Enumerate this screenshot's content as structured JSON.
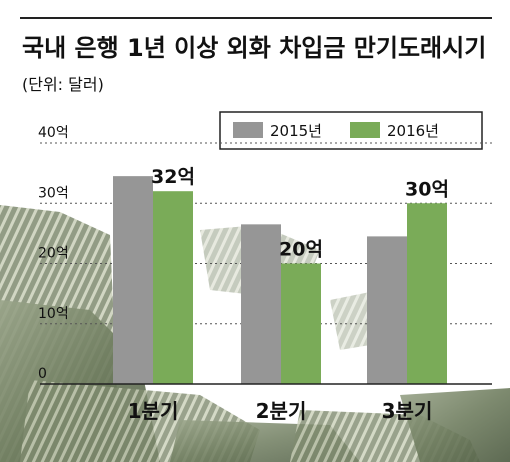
{
  "chart_data": {
    "type": "bar",
    "title": "국내 은행 1년 이상 외화 차입금 만기도래시기",
    "subtitle": "(단위: 달러)",
    "categories": [
      "1분기",
      "2분기",
      "3분기"
    ],
    "series": [
      {
        "name": "2015년",
        "values": [
          34.5,
          26.5,
          24.5
        ],
        "labels": [
          "",
          "",
          ""
        ]
      },
      {
        "name": "2016년",
        "values": [
          32,
          20,
          30
        ],
        "labels": [
          "32억",
          "20억",
          "30억"
        ]
      }
    ],
    "ylim": [
      0,
      40
    ],
    "yticks": [
      0,
      10,
      20,
      30,
      40
    ],
    "ytick_labels": [
      "0",
      "10억",
      "20억",
      "30억",
      "40억"
    ],
    "grid": true,
    "legend_position": "top-right",
    "colors": {
      "series0": "#969696",
      "series1": "#7aab58"
    }
  }
}
